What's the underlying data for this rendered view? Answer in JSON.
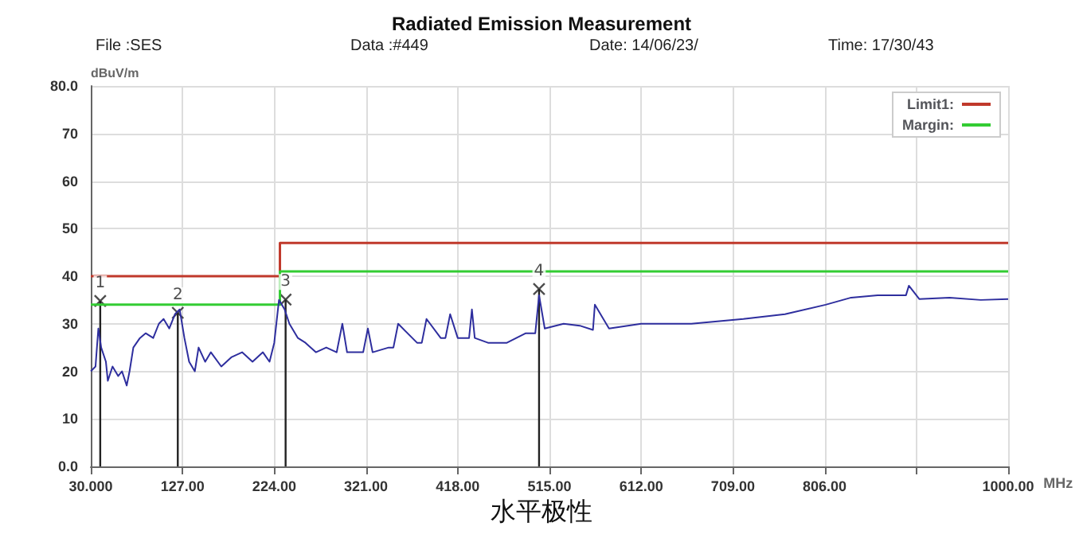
{
  "chart_data": {
    "type": "line",
    "title": "Radiated Emission Measurement",
    "annotations": [
      "File :SES",
      "Data :#449",
      "Date: 14/06/23/",
      "Time: 17/30/43",
      {
        "text": "1",
        "x": 40,
        "y": 34.8
      },
      {
        "text": "2",
        "x": 122,
        "y": 32.3
      },
      {
        "text": "3",
        "x": 236,
        "y": 35.1
      },
      {
        "text": "4",
        "x": 504,
        "y": 37.3
      },
      "水平极性"
    ],
    "xlabel": "MHz",
    "ylabel": "dBuV/m",
    "xlim": [
      30,
      1000
    ],
    "xticks": [
      {
        "value": 30,
        "label": "30.000"
      },
      {
        "value": 127,
        "label": "127.00"
      },
      {
        "value": 224,
        "label": "224.00"
      },
      {
        "value": 321,
        "label": "321.00"
      },
      {
        "value": 418,
        "label": "418.00"
      },
      {
        "value": 515,
        "label": "515.00"
      },
      {
        "value": 612,
        "label": "612.00"
      },
      {
        "value": 709,
        "label": "709.00"
      },
      {
        "value": 806,
        "label": "806.00"
      },
      {
        "value": 903,
        "label": null
      },
      {
        "value": 1000,
        "label": "1000.00"
      }
    ],
    "ylim": [
      0,
      80
    ],
    "yticks": [
      {
        "value": 0,
        "label": "0.0"
      },
      10,
      20,
      30,
      40,
      50,
      60,
      70,
      {
        "value": 80,
        "label": "80.0"
      }
    ],
    "grid": true,
    "legend": "top right",
    "marker": "none",
    "line_style": "solid",
    "series": [
      {
        "name": "Limit1:",
        "type": "step",
        "color": "#c0392b",
        "x": [
          30,
          230,
          1000
        ],
        "values": [
          40,
          47,
          47
        ]
      },
      {
        "name": "Margin:",
        "type": "step",
        "color": "#33cc33",
        "x": [
          30,
          230,
          1000
        ],
        "values": [
          34,
          41,
          41
        ]
      },
      {
        "color": "#2e2e9e",
        "x": [
          30,
          35,
          38,
          41,
          46,
          48,
          53,
          59,
          63,
          68,
          71,
          75,
          82,
          88,
          96,
          102,
          107,
          113,
          119,
          124,
          129,
          134,
          140,
          144,
          151,
          157,
          168,
          179,
          190,
          201,
          212,
          219,
          224,
          229,
          235,
          240,
          249,
          257,
          268,
          279,
          290,
          296,
          301,
          318,
          323,
          328,
          345,
          350,
          355,
          375,
          380,
          385,
          400,
          405,
          410,
          418,
          430,
          433,
          436,
          450,
          470,
          490,
          500,
          504,
          510,
          530,
          547,
          561,
          563,
          578,
          612,
          665,
          720,
          764,
          807,
          834,
          862,
          892,
          895,
          906,
          938,
          971,
          1000
        ],
        "values": [
          20,
          21,
          29,
          25,
          22,
          18,
          21,
          19,
          20,
          17,
          20,
          25,
          27,
          28,
          27,
          30,
          31,
          29,
          32,
          33,
          27,
          22,
          20,
          25,
          22,
          24,
          21,
          23,
          24,
          22,
          24,
          22,
          26,
          35,
          33,
          30,
          27,
          26,
          24,
          25,
          24,
          30,
          24,
          24,
          29,
          24,
          25,
          25,
          30,
          26,
          26,
          31,
          27,
          27,
          32,
          27,
          27,
          33,
          27,
          26,
          26,
          28,
          28,
          36,
          29,
          30,
          29.6,
          28.7,
          34,
          29,
          30,
          30,
          31,
          32,
          34,
          35.5,
          36,
          36,
          38,
          35.2,
          35.5,
          35,
          35.2
        ]
      },
      {
        "type": "lollipop",
        "color": "#222222",
        "marker": "cross",
        "x": [
          40,
          122,
          236,
          504
        ],
        "values": [
          34.8,
          32.3,
          35.1,
          37.3
        ]
      }
    ]
  }
}
